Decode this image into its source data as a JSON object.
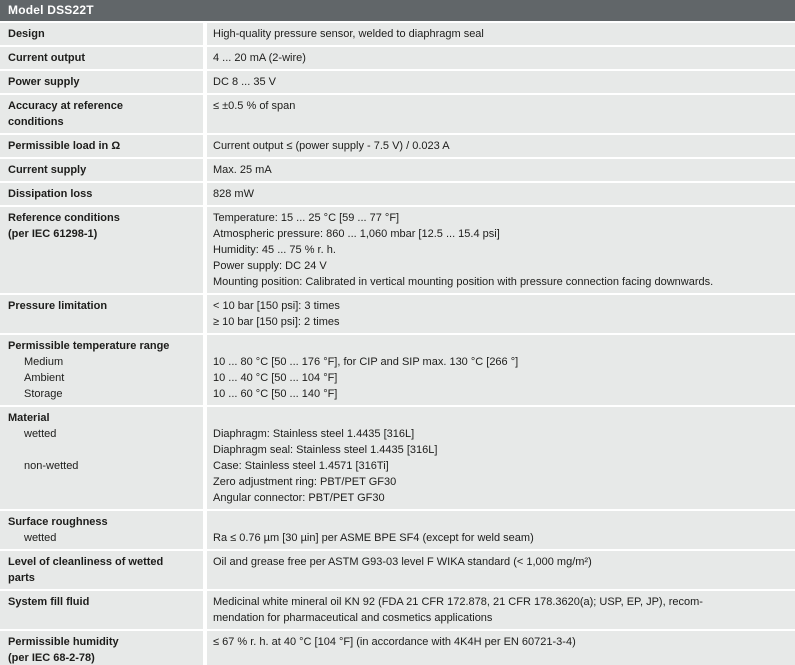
{
  "page": {
    "title": "Model DSS22T"
  },
  "colors": {
    "header_bg": "#616669",
    "header_text": "#ffffff",
    "row_bg": "#e7e9e8",
    "text": "#1d1d1b",
    "separator": "#ffffff"
  },
  "table": {
    "rows": [
      {
        "label": [
          {
            "text": "Design",
            "style": "main"
          }
        ],
        "value": [
          "High-quality pressure sensor, welded to diaphragm seal"
        ]
      },
      {
        "label": [
          {
            "text": "Current output",
            "style": "main"
          }
        ],
        "value": [
          "4 ... 20 mA (2-wire)"
        ]
      },
      {
        "label": [
          {
            "text": "Power supply",
            "style": "main"
          }
        ],
        "value": [
          "DC 8 ... 35 V"
        ]
      },
      {
        "label": [
          {
            "text": "Accuracy at reference",
            "style": "main"
          },
          {
            "text": "conditions",
            "style": "main"
          }
        ],
        "value": [
          "≤ ±0.5 % of span",
          ""
        ]
      },
      {
        "label": [
          {
            "text": "Permissible load in Ω",
            "style": "main"
          }
        ],
        "value": [
          "Current output ≤ (power supply - 7.5 V) / 0.023 A"
        ]
      },
      {
        "label": [
          {
            "text": "Current supply",
            "style": "main"
          }
        ],
        "value": [
          "Max. 25 mA"
        ]
      },
      {
        "label": [
          {
            "text": "Dissipation loss",
            "style": "main"
          }
        ],
        "value": [
          "828 mW"
        ]
      },
      {
        "label": [
          {
            "text": "Reference conditions",
            "style": "main"
          },
          {
            "text": "(per IEC 61298-1)",
            "style": "main"
          }
        ],
        "value": [
          "Temperature: 15 ... 25 °C [59 ... 77 °F]",
          "Atmospheric pressure: 860 ... 1,060 mbar [12.5 ... 15.4 psi]",
          "Humidity: 45 ... 75 % r. h.",
          "Power supply: DC 24 V",
          "Mounting position: Calibrated in vertical mounting position with pressure connection facing downwards."
        ]
      },
      {
        "label": [
          {
            "text": "Pressure limitation",
            "style": "main"
          }
        ],
        "value": [
          "< 10 bar [150 psi]: 3 times",
          "≥ 10 bar [150 psi]: 2 times"
        ]
      },
      {
        "label": [
          {
            "text": "Permissible temperature range",
            "style": "main"
          },
          {
            "text": "Medium",
            "style": "sub"
          },
          {
            "text": "Ambient",
            "style": "sub"
          },
          {
            "text": "Storage",
            "style": "sub"
          }
        ],
        "value": [
          "",
          "10 ... 80 °C [50 ... 176 °F], for CIP and SIP max. 130 °C [266 °]",
          "10 ... 40 °C [50 ... 104 °F]",
          "10 ... 60 °C [50 ... 140 °F]"
        ]
      },
      {
        "label": [
          {
            "text": "Material",
            "style": "main"
          },
          {
            "text": "wetted",
            "style": "sub"
          },
          {
            "text": "",
            "style": "sub"
          },
          {
            "text": "non-wetted",
            "style": "sub"
          }
        ],
        "value": [
          "",
          "Diaphragm: Stainless steel 1.4435 [316L]",
          "Diaphragm seal: Stainless steel 1.4435 [316L]",
          "Case: Stainless steel 1.4571 [316Ti]",
          "Zero adjustment ring: PBT/PET GF30",
          "Angular connector: PBT/PET GF30"
        ]
      },
      {
        "label": [
          {
            "text": "Surface roughness",
            "style": "main"
          },
          {
            "text": "wetted",
            "style": "sub"
          }
        ],
        "value": [
          "",
          "Ra ≤ 0.76 µm [30 µin] per ASME BPE SF4 (except for weld seam)"
        ]
      },
      {
        "label": [
          {
            "text": "Level of cleanliness of wetted",
            "style": "main"
          },
          {
            "text": "parts",
            "style": "main"
          }
        ],
        "value": [
          "Oil and grease free per ASTM G93-03 level F WIKA standard (< 1,000 mg/m²)",
          ""
        ]
      },
      {
        "label": [
          {
            "text": "System fill fluid",
            "style": "main"
          }
        ],
        "value": [
          "Medicinal white mineral oil KN 92 (FDA 21 CFR 172.878, 21 CFR 178.3620(a); USP, EP, JP), recom-",
          "mendation for pharmaceutical and cosmetics applications"
        ]
      },
      {
        "label": [
          {
            "text": "Permissible humidity",
            "style": "main"
          },
          {
            "text": "(per IEC 68-2-78)",
            "style": "main"
          }
        ],
        "value": [
          "≤ 67 % r. h. at 40 °C [104 °F] (in accordance with 4K4H per EN 60721-3-4)",
          ""
        ]
      }
    ]
  }
}
